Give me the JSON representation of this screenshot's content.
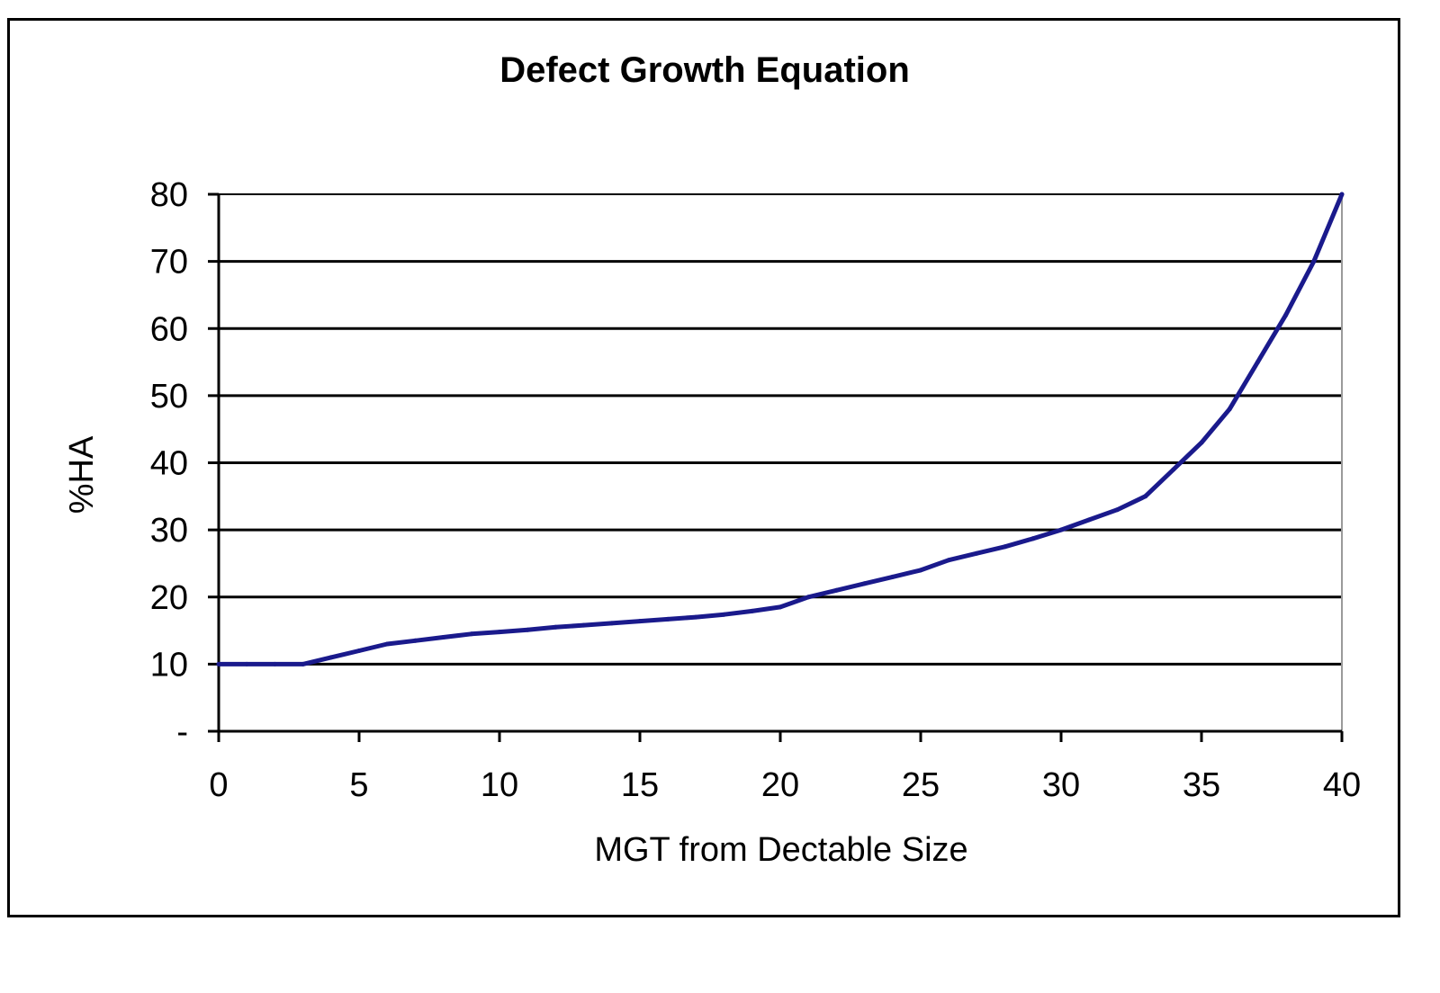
{
  "chart_data": {
    "type": "line",
    "title": "Defect Growth Equation",
    "xlabel": "MGT  from Dectable Size",
    "ylabel": "%HA",
    "xlim": [
      0,
      40
    ],
    "ylim": [
      0,
      80
    ],
    "xticks": [
      0,
      5,
      10,
      15,
      20,
      25,
      30,
      35,
      40
    ],
    "xtick_labels": [
      "0",
      "5",
      "10",
      "15",
      "20",
      "25",
      "30",
      "35",
      "40"
    ],
    "yticks": [
      0,
      10,
      20,
      30,
      40,
      50,
      60,
      70,
      80
    ],
    "ytick_labels": [
      "-",
      "10",
      "20",
      "30",
      "40",
      "50",
      "60",
      "70",
      "80"
    ],
    "grid": "horizontal",
    "legend": "none",
    "series": [
      {
        "name": "%HA",
        "color": "#1a1a8c",
        "x": [
          0,
          1,
          2,
          3,
          4,
          5,
          6,
          7,
          8,
          9,
          10,
          11,
          12,
          13,
          14,
          15,
          16,
          17,
          18,
          19,
          20,
          21,
          22,
          23,
          24,
          25,
          26,
          27,
          28,
          29,
          30,
          31,
          32,
          33,
          34,
          35,
          36,
          37,
          38,
          39,
          40
        ],
        "values": [
          10,
          10,
          10,
          10,
          11,
          12,
          13,
          13.5,
          14,
          14.5,
          14.8,
          15.1,
          15.5,
          15.8,
          16.1,
          16.4,
          16.7,
          17,
          17.4,
          17.9,
          18.5,
          20,
          21,
          22,
          23,
          24,
          25.5,
          26.5,
          27.5,
          28.7,
          30,
          31.5,
          33,
          35,
          39,
          43,
          48,
          55,
          62,
          70,
          80
        ]
      }
    ]
  }
}
